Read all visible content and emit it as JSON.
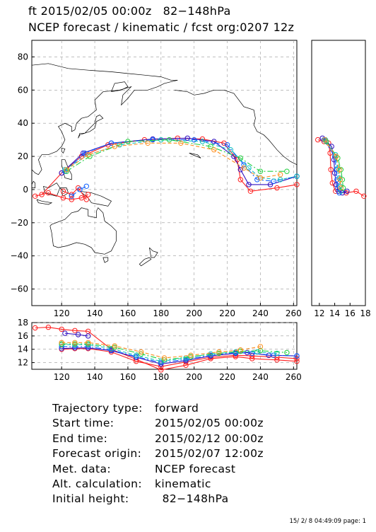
{
  "title_line1": "ft 2015/02/05 00:00z   82−148hPa",
  "title_line2": "NCEP forecast / kinematic / fcst org:0207 12z",
  "footer_stamp": "15/ 2/ 8 04:49:09 page: 1",
  "info": [
    {
      "key": "Trajectory type:",
      "value": "forward"
    },
    {
      "key": "Start time:",
      "value": "2015/02/05 00:00z"
    },
    {
      "key": "End time:",
      "value": "2015/02/12 00:00z"
    },
    {
      "key": "Forecast origin:",
      "value": "2015/02/07 12:00z"
    },
    {
      "key": "Met. data:",
      "value": "NCEP forecast"
    },
    {
      "key": "Alt. calculation:",
      "value": "kinematic"
    },
    {
      "key": "Initial height:",
      "value": "  82−148hPa"
    }
  ],
  "colors": {
    "red": "#ff2020",
    "purple": "#3010c0",
    "blue": "#1060ff",
    "cyan": "#10c0c0",
    "green": "#20d040",
    "orange": "#ff9020",
    "black": "#000000"
  },
  "chart_data": [
    {
      "type": "line",
      "panel": "map",
      "xlim": [
        102,
        262
      ],
      "ylim": [
        -70,
        90
      ],
      "xticks": [
        120,
        140,
        160,
        180,
        200,
        220,
        240,
        260
      ],
      "yticks": [
        80,
        60,
        40,
        20,
        0,
        -20,
        -40,
        -60
      ],
      "series": [
        {
          "color": "red",
          "x": [
            108,
            120,
            132,
            148,
            170,
            190,
            205,
            218,
            226,
            228,
            234,
            250,
            262
          ],
          "y": [
            -3,
            10,
            20,
            27,
            30,
            31,
            30.5,
            28,
            18,
            6,
            -1,
            1,
            3
          ]
        },
        {
          "color": "purple",
          "x": [
            120,
            133,
            150,
            175,
            196,
            212,
            224,
            228,
            233,
            246,
            262
          ],
          "y": [
            10,
            22,
            28,
            30.5,
            31,
            29,
            20,
            12,
            3,
            3,
            8
          ]
        },
        {
          "color": "blue",
          "x": [
            122,
            134,
            150,
            175,
            200,
            220,
            230,
            238,
            248,
            262
          ],
          "y": [
            11,
            22,
            28,
            30,
            30,
            27,
            15,
            6,
            5,
            8
          ]
        },
        {
          "color": "cyan",
          "x": [
            122,
            136,
            155,
            180,
            205,
            222,
            233,
            240,
            252,
            262
          ],
          "y": [
            12,
            21,
            27,
            30,
            29,
            24,
            13,
            7,
            6,
            8
          ]
        },
        {
          "color": "green",
          "x": [
            123,
            137,
            160,
            185,
            210,
            228,
            240,
            256
          ],
          "y": [
            11,
            20,
            29,
            30,
            26,
            19,
            11,
            11
          ]
        },
        {
          "color": "orange",
          "x": [
            123,
            136,
            152,
            172,
            192,
            212,
            230,
            240,
            252
          ],
          "y": [
            12,
            21,
            26,
            28,
            28,
            24,
            13,
            7,
            9
          ]
        },
        {
          "color": "red",
          "x": [
            104,
            112,
            121,
            126,
            132,
            136
          ],
          "y": [
            -4,
            -2,
            -5,
            -6,
            -5,
            -3
          ]
        },
        {
          "color": "red",
          "x": [
            121,
            126,
            130,
            135
          ],
          "y": [
            -1,
            -3,
            1,
            -6
          ]
        },
        {
          "color": "blue",
          "x": [
            126,
            131,
            135
          ],
          "y": [
            -4,
            0,
            2
          ]
        }
      ]
    },
    {
      "type": "line",
      "panel": "side",
      "xlim": [
        11,
        18
      ],
      "ylim": [
        -70,
        90
      ],
      "xticks": [
        12,
        14,
        16,
        18
      ],
      "series": [
        {
          "color": "red",
          "x": [
            11.8,
            12.6,
            13.2,
            13.4,
            13.5,
            13.7,
            14.1,
            15.5,
            16.8,
            17.8
          ],
          "y": [
            30,
            29,
            28,
            22,
            12,
            4,
            -1,
            -2,
            -1,
            -4
          ]
        },
        {
          "color": "purple",
          "x": [
            12.4,
            13.6,
            13.9,
            14.0,
            14.2,
            14.5,
            15.0,
            15.6
          ],
          "y": [
            31,
            26,
            18,
            10,
            3,
            -1,
            -2,
            -1
          ]
        },
        {
          "color": "blue",
          "x": [
            12.6,
            14.0,
            14.2,
            14.3,
            14.4,
            14.6
          ],
          "y": [
            30,
            20,
            12,
            6,
            1,
            -2
          ]
        },
        {
          "color": "cyan",
          "x": [
            12.8,
            14.1,
            14.4,
            14.6,
            14.7,
            14.8
          ],
          "y": [
            30,
            21,
            13,
            7,
            2,
            -1
          ]
        },
        {
          "color": "green",
          "x": [
            12.9,
            14.4,
            14.8,
            15.0,
            15.1
          ],
          "y": [
            29,
            19,
            12,
            6,
            1
          ]
        },
        {
          "color": "orange",
          "x": [
            12.7,
            14.2,
            14.6,
            14.7,
            14.8
          ],
          "y": [
            30,
            20,
            12,
            6,
            1
          ]
        }
      ]
    },
    {
      "type": "line",
      "panel": "bottom",
      "xlim": [
        102,
        262
      ],
      "ylim": [
        11,
        18
      ],
      "xticks": [
        120,
        140,
        160,
        180,
        200,
        220,
        240,
        260
      ],
      "yticks": [
        18,
        16,
        14,
        12
      ],
      "series": [
        {
          "color": "red",
          "x": [
            104,
            112,
            120,
            128,
            136,
            150,
            165,
            180,
            195,
            210,
            225,
            235,
            250,
            262
          ],
          "y": [
            17.2,
            17.3,
            17.0,
            16.8,
            16.7,
            14.0,
            12.5,
            10.9,
            11.6,
            12.6,
            12.9,
            12.6,
            12.4,
            12.2
          ]
        },
        {
          "color": "red",
          "x": [
            120,
            128,
            136,
            150,
            165,
            180,
            195,
            210,
            225,
            235,
            250,
            262
          ],
          "y": [
            14.0,
            14.1,
            14.1,
            13.6,
            12.2,
            11.4,
            12.1,
            12.8,
            13.1,
            13.0,
            12.8,
            12.6
          ]
        },
        {
          "color": "purple",
          "x": [
            120,
            128,
            136,
            150,
            165,
            180,
            195,
            210,
            225,
            232,
            245,
            262
          ],
          "y": [
            14.1,
            14.2,
            14.2,
            13.8,
            12.8,
            11.8,
            12.3,
            13.0,
            13.4,
            13.5,
            13.1,
            13.0
          ]
        },
        {
          "color": "blue",
          "x": [
            120,
            128,
            136,
            150,
            165,
            180,
            195,
            210,
            225,
            235,
            248,
            262
          ],
          "y": [
            14.4,
            14.4,
            14.4,
            13.9,
            12.9,
            12.0,
            12.5,
            13.1,
            13.5,
            13.4,
            13.1,
            13.0
          ]
        },
        {
          "color": "cyan",
          "x": [
            120,
            128,
            136,
            150,
            165,
            180,
            195,
            210,
            225,
            238,
            250
          ],
          "y": [
            14.7,
            14.7,
            14.7,
            14.1,
            13.1,
            12.2,
            12.7,
            13.3,
            13.6,
            13.6,
            13.4
          ]
        },
        {
          "color": "green",
          "x": [
            120,
            128,
            136,
            152,
            168,
            182,
            198,
            215,
            228,
            240,
            256
          ],
          "y": [
            14.8,
            14.8,
            14.8,
            14.3,
            13.3,
            12.4,
            12.9,
            13.4,
            13.7,
            13.8,
            13.5
          ]
        },
        {
          "color": "orange",
          "x": [
            120,
            128,
            136,
            152,
            168,
            182,
            198,
            215,
            228,
            240
          ],
          "y": [
            15.0,
            15.0,
            15.0,
            14.5,
            13.6,
            12.7,
            13.1,
            13.6,
            13.9,
            14.4
          ]
        },
        {
          "color": "purple",
          "x": [
            122,
            130,
            136
          ],
          "y": [
            16.4,
            16.2,
            16.0
          ]
        }
      ]
    }
  ]
}
